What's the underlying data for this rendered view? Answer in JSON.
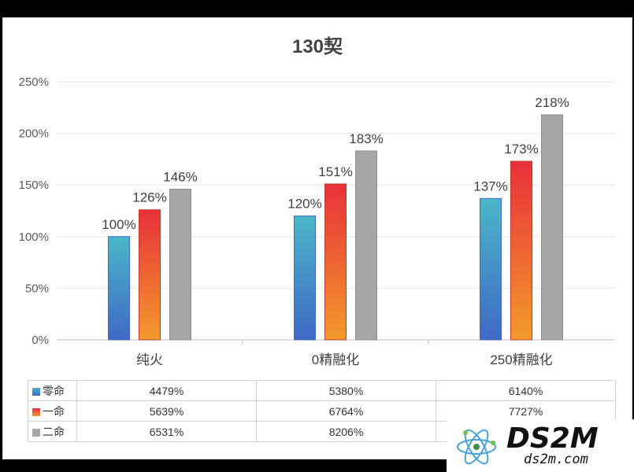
{
  "chart_data": {
    "type": "bar",
    "title": "130契",
    "categories": [
      "纯火",
      "0精融化",
      "250精融化"
    ],
    "series": [
      {
        "name": "零命",
        "values": [
          100,
          120,
          137
        ],
        "labels": [
          "100%",
          "120%",
          "137%"
        ],
        "table": [
          "4479%",
          "5380%",
          "6140%"
        ]
      },
      {
        "name": "一命",
        "values": [
          126,
          151,
          173
        ],
        "labels": [
          "126%",
          "151%",
          "173%"
        ],
        "table": [
          "5639%",
          "6764%",
          "7727%"
        ]
      },
      {
        "name": "二命",
        "values": [
          146,
          183,
          218
        ],
        "labels": [
          "146%",
          "183%",
          "218%"
        ],
        "table": [
          "6531%",
          "8206%",
          ""
        ]
      }
    ],
    "ylim": [
      0,
      250
    ],
    "yticks": [
      "0%",
      "50%",
      "100%",
      "150%",
      "200%",
      "250%"
    ],
    "yticks_values": [
      0,
      50,
      100,
      150,
      200,
      250
    ],
    "grid": true,
    "legend": "data-table-below",
    "colors": {
      "s0_top": "#4bb6c8",
      "s0_bottom": "#3f69c6",
      "s1_top": "#e8303a",
      "s1_bottom": "#f39a2c",
      "s2": "#a6a6a6"
    }
  },
  "watermark": {
    "main": "DS2M",
    "sub": "ds2m.com"
  }
}
